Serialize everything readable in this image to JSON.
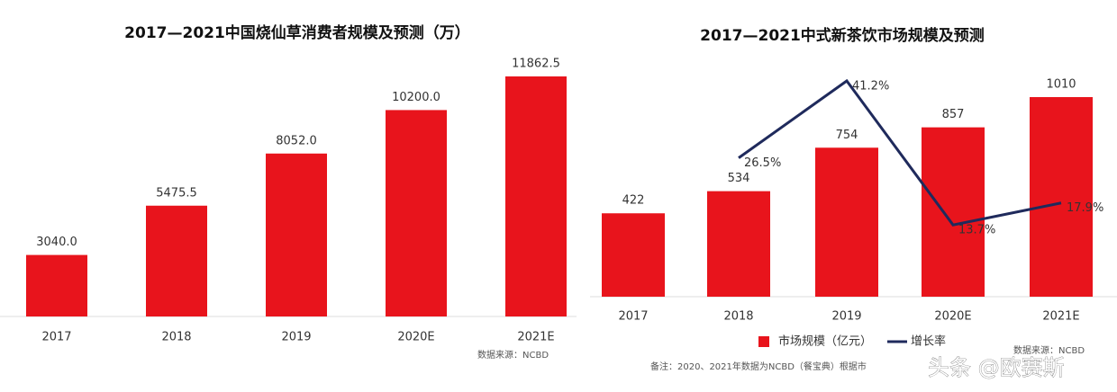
{
  "chart_data": [
    {
      "type": "bar",
      "title": "2017—2021中国烧仙草消费者规模及预测（万）",
      "categories": [
        "2017",
        "2018",
        "2019",
        "2020E",
        "2021E"
      ],
      "values": [
        3040.0,
        5475.5,
        8052.0,
        10200.0,
        11862.5
      ],
      "value_labels": [
        "3040.0",
        "5475.5",
        "8052.0",
        "10200.0",
        "11862.5"
      ],
      "color": "#e8141c",
      "source": "数据来源：NCBD"
    },
    {
      "type": "bar",
      "title": "2017—2021中式新茶饮市场规模及预测",
      "categories": [
        "2017",
        "2018",
        "2019",
        "2020E",
        "2021E"
      ],
      "series": [
        {
          "name": "市场规模（亿元）",
          "color": "#e8141c",
          "values": [
            422,
            534,
            754,
            857,
            1010
          ]
        },
        {
          "name": "增长率",
          "type": "line",
          "axis": "y2",
          "color": "#1f2a5c",
          "values": [
            null,
            26.5,
            41.2,
            13.7,
            17.9
          ],
          "value_labels": [
            null,
            "26.5%",
            "41.2%",
            "13.7%",
            "17.9%"
          ]
        }
      ],
      "source": "数据来源：NCBD",
      "note": "备注：2020、2021年数据为NCBD（餐宝典）根据市"
    }
  ],
  "watermark": "头条 @欧赛斯"
}
